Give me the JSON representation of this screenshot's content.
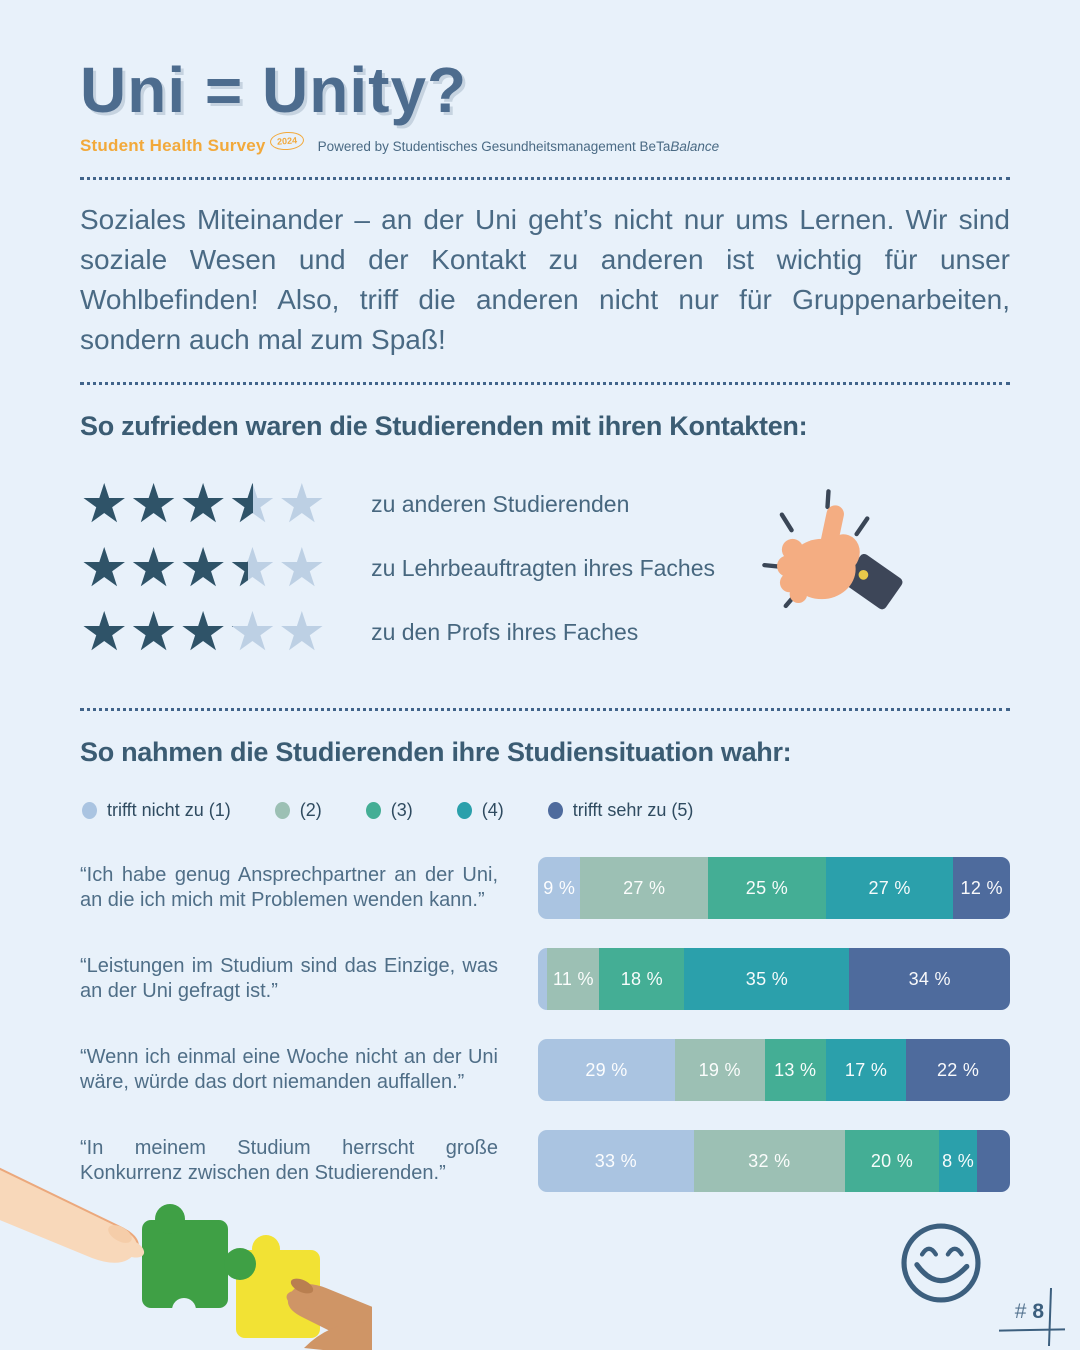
{
  "page": {
    "title": "Uni = Unity?",
    "brand": {
      "name": "Student Health Survey",
      "badge": "2024",
      "powered_prefix": "Powered by Studentisches Gesundheitsmanagement BeTa",
      "powered_italic": "Balance"
    },
    "intro": "Soziales Miteinander – an der Uni geht’s nicht nur ums Lernen. Wir sind soziale Wesen und der Kontakt zu anderen ist wichtig für unser Wohlbefinden! Also, triff die anderen nicht nur für Gruppenarbeiten, sondern auch mal zum Spaß!",
    "page_number_hash": "#",
    "page_number": "8"
  },
  "colors": {
    "background": "#e8f1fa",
    "heading": "#3b5c73",
    "title": "#4d6c8e",
    "brand_orange": "#f2a93b",
    "star_filled": "#2f5368",
    "star_empty": "#bdd0e4",
    "palette": [
      "#aac4e1",
      "#9cc0b4",
      "#44ae95",
      "#2ba0ab",
      "#4e6b9d"
    ]
  },
  "ratings_section": {
    "heading": "So zufrieden waren die Studierenden mit ihren Kontakten:",
    "max_stars": 5,
    "items": [
      {
        "label": "zu anderen Studierenden",
        "rating": 3.5
      },
      {
        "label": "zu Lehrbeauftragten ihres Faches",
        "rating": 3.4
      },
      {
        "label": "zu den Profs ihres Faches",
        "rating": 3.1
      }
    ]
  },
  "survey_section": {
    "heading": "So nahmen die Studierenden ihre Studiensituation wahr:",
    "legend": [
      {
        "label": "trifft nicht zu (1)"
      },
      {
        "label": "(2)"
      },
      {
        "label": "(3)"
      },
      {
        "label": "(4)"
      },
      {
        "label": "trifft sehr zu (5)"
      }
    ],
    "rows": [
      {
        "quote": "“Ich habe genug Ansprechpartner an der Uni, an die ich mich mit Problemen wenden kann.”",
        "values": [
          9,
          27,
          25,
          27,
          12
        ],
        "labels": [
          "9 %",
          "27 %",
          "25 %",
          "27 %",
          "12 %"
        ]
      },
      {
        "quote": "“Leistungen im Studium sind das Einzige, was an der Uni gefragt ist.”",
        "values": [
          2,
          11,
          18,
          35,
          34
        ],
        "labels": [
          "",
          "11 %",
          "18 %",
          "35 %",
          "34 %"
        ]
      },
      {
        "quote": "“Wenn ich einmal eine Woche nicht an der Uni wäre, würde das dort niemanden auffallen.”",
        "values": [
          29,
          19,
          13,
          17,
          22
        ],
        "labels": [
          "29 %",
          "19 %",
          "13 %",
          "17 %",
          "22 %"
        ]
      },
      {
        "quote": "“In meinem Studium herrscht große Konkurrenz zwischen den Studierenden.”",
        "values": [
          33,
          32,
          20,
          8,
          7
        ],
        "labels": [
          "33 %",
          "32 %",
          "20 %",
          "8 %",
          ""
        ]
      }
    ]
  },
  "chart_data": [
    {
      "type": "bar",
      "variant": "stacked-horizontal-percent",
      "title": "So nahmen die Studierenden ihre Studiensituation wahr:",
      "unit": "%",
      "xlim": [
        0,
        100
      ],
      "legend_position": "top",
      "categories": [
        "“Ich habe genug Ansprechpartner an der Uni, an die ich mich mit Problemen wenden kann.”",
        "“Leistungen im Studium sind das Einzige, was an der Uni gefragt ist.”",
        "“Wenn ich einmal eine Woche nicht an der Uni wäre, würde das dort niemanden auffallen.”",
        "“In meinem Studium herrscht große Konkurrenz zwischen den Studierenden.”"
      ],
      "series": [
        {
          "name": "trifft nicht zu (1)",
          "values": [
            9,
            2,
            29,
            33
          ]
        },
        {
          "name": "(2)",
          "values": [
            27,
            11,
            19,
            32
          ]
        },
        {
          "name": "(3)",
          "values": [
            25,
            18,
            13,
            20
          ]
        },
        {
          "name": "(4)",
          "values": [
            27,
            35,
            17,
            8
          ]
        },
        {
          "name": "trifft sehr zu (5)",
          "values": [
            12,
            34,
            22,
            7
          ]
        }
      ]
    },
    {
      "type": "rating",
      "title": "So zufrieden waren die Studierenden mit ihren Kontakten:",
      "max": 5,
      "categories": [
        "zu anderen Studierenden",
        "zu Lehrbeauftragten ihres Faches",
        "zu den Profs ihres Faches"
      ],
      "values": [
        3.5,
        3.4,
        3.1
      ]
    }
  ]
}
